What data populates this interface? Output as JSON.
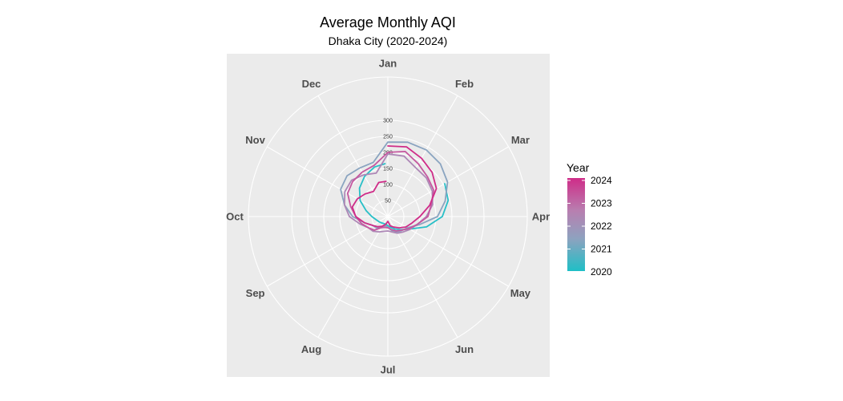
{
  "chart_data": {
    "type": "line",
    "coord": "polar",
    "title": "Average Monthly AQI",
    "subtitle": "Dhaka City (2020-2024)",
    "angular_axis": {
      "labels": [
        "Jan",
        "Feb",
        "Mar",
        "Apr",
        "May",
        "Jun",
        "Jul",
        "Aug",
        "Sep",
        "Oct",
        "Nov",
        "Dec"
      ],
      "start": "top",
      "direction": "clockwise"
    },
    "radial_axis": {
      "ticks": [
        50,
        100,
        150,
        200,
        250,
        300
      ],
      "max": 435
    },
    "grid": true,
    "panel_background": "#ebebeb",
    "legend": {
      "title": "Year",
      "position": "right",
      "labels": [
        "2024",
        "2023",
        "2022",
        "2021",
        "2020"
      ],
      "gradient": [
        "#cf2c88",
        "#b87fb0",
        "#8ea2bf",
        "#1fbfc6"
      ]
    },
    "series": [
      {
        "year": 2020,
        "color": "#27bfc7",
        "x": [
          2.0,
          2.5,
          3.0,
          3.5,
          4.0,
          4.5,
          5.0,
          5.5,
          6.0,
          6.5,
          7.0,
          7.5,
          8.0,
          8.5,
          9.0,
          9.5,
          10.0,
          10.5,
          11.0,
          11.5,
          11.9
        ],
        "y": [
          205,
          195,
          170,
          125,
          78,
          58,
          45,
          35,
          28,
          25,
          25,
          28,
          32,
          38,
          50,
          70,
          100,
          125,
          145,
          160,
          165
        ]
      },
      {
        "year": 2021,
        "color": "#8aa4c0",
        "x": [
          0.0,
          0.5,
          1.0,
          1.5,
          2.0,
          2.5,
          3.0,
          3.5,
          4.0,
          4.5,
          5.0,
          5.5,
          6.0,
          6.5,
          7.0,
          7.5,
          8.0,
          8.5,
          9.0,
          9.5,
          10.0,
          10.5,
          11.0,
          11.5,
          12.0
        ],
        "y": [
          232,
          240,
          240,
          232,
          215,
          185,
          155,
          100,
          70,
          62,
          56,
          45,
          32,
          30,
          40,
          50,
          55,
          75,
          110,
          140,
          170,
          180,
          175,
          175,
          232
        ]
      },
      {
        "year": 2022,
        "color": "#ad87b6",
        "x": [
          0.0,
          0.5,
          1.0,
          1.5,
          2.0,
          2.5,
          3.0,
          3.5,
          4.0,
          4.5,
          5.0,
          5.5,
          6.0,
          6.5,
          7.0,
          7.5,
          8.0,
          8.5,
          9.0,
          9.5,
          10.0,
          10.5,
          11.0,
          11.5,
          12.0
        ],
        "y": [
          195,
          195,
          175,
          170,
          160,
          145,
          120,
          95,
          80,
          68,
          60,
          50,
          45,
          48,
          55,
          65,
          70,
          90,
          120,
          140,
          155,
          160,
          150,
          140,
          195
        ]
      },
      {
        "year": 2023,
        "color": "#c5579f",
        "x": [
          0.0,
          0.5,
          1.0,
          1.5,
          2.0,
          2.5,
          3.0,
          3.5,
          4.0,
          4.5,
          5.0,
          5.5,
          6.0,
          6.5,
          7.0,
          7.5,
          8.0,
          8.5,
          9.0,
          9.5,
          10.0,
          10.5,
          11.0,
          11.5,
          12.0
        ],
        "y": [
          200,
          210,
          190,
          175,
          165,
          140,
          125,
          95,
          75,
          60,
          52,
          42,
          35,
          35,
          40,
          60,
          70,
          85,
          100,
          120,
          145,
          155,
          160,
          165,
          200
        ]
      },
      {
        "year": 2024,
        "color": "#cf2c88",
        "x": [
          0.0,
          0.5,
          1.0,
          1.5,
          2.0,
          2.5,
          3.0,
          3.5,
          4.0,
          4.5,
          5.0,
          5.5,
          6.0,
          6.5,
          7.0,
          7.5,
          8.0,
          8.5,
          9.0,
          9.5,
          10.0,
          10.5,
          11.0,
          11.5,
          11.9
        ],
        "y": [
          220,
          225,
          210,
          195,
          175,
          135,
          100,
          78,
          65,
          50,
          38,
          30,
          15,
          25,
          35,
          45,
          55,
          75,
          100,
          115,
          110,
          100,
          90,
          110,
          110
        ]
      }
    ]
  }
}
